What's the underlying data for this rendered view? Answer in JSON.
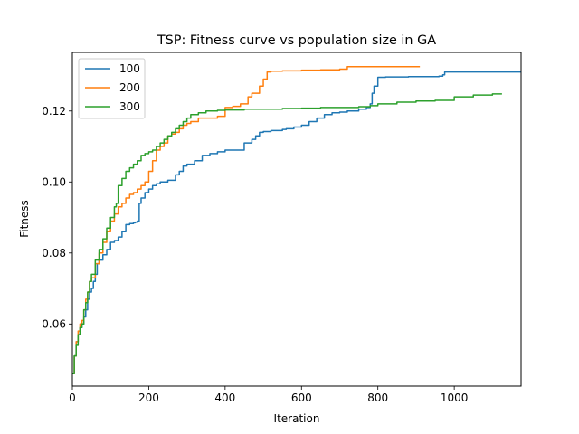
{
  "chart_data": {
    "type": "line",
    "title": "TSP: Fitness curve vs population size in GA",
    "xlabel": "Iteration",
    "ylabel": "Fitness",
    "xlim": [
      0,
      1175
    ],
    "ylim": [
      0.0425,
      0.1365
    ],
    "xticks": [
      0,
      200,
      400,
      600,
      800,
      1000
    ],
    "yticks": [
      0.06,
      0.08,
      0.1,
      0.12
    ],
    "ytick_labels": [
      "0.06",
      "0.08",
      "0.10",
      "0.12"
    ],
    "grid": false,
    "legend_position": "top-left",
    "series": [
      {
        "name": "100",
        "color": "#1f77b4",
        "step": true,
        "x": [
          0,
          5,
          10,
          15,
          20,
          25,
          30,
          35,
          40,
          45,
          50,
          55,
          60,
          65,
          70,
          80,
          90,
          100,
          110,
          120,
          130,
          140,
          150,
          160,
          165,
          170,
          175,
          180,
          190,
          200,
          210,
          220,
          230,
          250,
          270,
          280,
          290,
          300,
          320,
          340,
          360,
          380,
          400,
          430,
          450,
          470,
          480,
          490,
          500,
          520,
          550,
          560,
          580,
          600,
          620,
          640,
          660,
          680,
          700,
          720,
          750,
          770,
          780,
          785,
          790,
          800,
          820,
          850,
          880,
          900,
          940,
          960,
          970,
          975,
          1000,
          1100,
          1175
        ],
        "y": [
          0.046,
          0.051,
          0.055,
          0.057,
          0.059,
          0.06,
          0.062,
          0.064,
          0.067,
          0.069,
          0.07,
          0.072,
          0.074,
          0.077,
          0.078,
          0.0795,
          0.081,
          0.083,
          0.0835,
          0.0845,
          0.086,
          0.088,
          0.0883,
          0.0885,
          0.0887,
          0.089,
          0.094,
          0.0955,
          0.097,
          0.098,
          0.099,
          0.0995,
          0.1,
          0.1005,
          0.102,
          0.103,
          0.1045,
          0.105,
          0.106,
          0.1075,
          0.108,
          0.1085,
          0.109,
          0.109,
          0.111,
          0.112,
          0.113,
          0.114,
          0.1142,
          0.1145,
          0.1148,
          0.115,
          0.1155,
          0.116,
          0.117,
          0.118,
          0.119,
          0.1195,
          0.1197,
          0.12,
          0.1205,
          0.121,
          0.122,
          0.125,
          0.127,
          0.1295,
          0.1296,
          0.1296,
          0.1297,
          0.1297,
          0.1297,
          0.1298,
          0.1302,
          0.131,
          0.131,
          0.131,
          0.131
        ]
      },
      {
        "name": "200",
        "color": "#ff7f0e",
        "step": true,
        "x": [
          0,
          5,
          10,
          15,
          20,
          25,
          30,
          35,
          40,
          45,
          50,
          60,
          70,
          80,
          90,
          100,
          110,
          120,
          130,
          140,
          150,
          160,
          170,
          180,
          190,
          200,
          210,
          220,
          230,
          240,
          250,
          260,
          270,
          280,
          290,
          300,
          310,
          330,
          350,
          380,
          400,
          410,
          420,
          440,
          460,
          470,
          480,
          490,
          500,
          510,
          520,
          550,
          600,
          650,
          700,
          720,
          750,
          800,
          850,
          900,
          910
        ],
        "y": [
          0.046,
          0.051,
          0.055,
          0.058,
          0.06,
          0.061,
          0.064,
          0.067,
          0.069,
          0.072,
          0.073,
          0.077,
          0.08,
          0.083,
          0.086,
          0.089,
          0.091,
          0.093,
          0.094,
          0.0955,
          0.0965,
          0.097,
          0.098,
          0.099,
          0.1,
          0.103,
          0.106,
          0.109,
          0.11,
          0.111,
          0.113,
          0.1135,
          0.114,
          0.115,
          0.116,
          0.1165,
          0.117,
          0.118,
          0.118,
          0.1185,
          0.121,
          0.121,
          0.1213,
          0.122,
          0.124,
          0.125,
          0.125,
          0.127,
          0.129,
          0.131,
          0.1312,
          0.1313,
          0.1315,
          0.1316,
          0.1318,
          0.1325,
          0.1325,
          0.1325,
          0.1325,
          0.1325,
          0.1325
        ]
      },
      {
        "name": "300",
        "color": "#2ca02c",
        "step": true,
        "x": [
          0,
          5,
          10,
          15,
          20,
          25,
          30,
          35,
          40,
          45,
          50,
          60,
          70,
          80,
          90,
          100,
          110,
          115,
          120,
          130,
          140,
          150,
          160,
          170,
          180,
          190,
          200,
          210,
          220,
          230,
          240,
          250,
          260,
          270,
          280,
          290,
          300,
          310,
          330,
          350,
          380,
          400,
          450,
          500,
          550,
          600,
          650,
          700,
          750,
          780,
          800,
          850,
          900,
          950,
          1000,
          1050,
          1100,
          1125
        ],
        "y": [
          0.046,
          0.051,
          0.054,
          0.057,
          0.059,
          0.06,
          0.064,
          0.066,
          0.069,
          0.072,
          0.074,
          0.078,
          0.081,
          0.084,
          0.087,
          0.09,
          0.093,
          0.094,
          0.099,
          0.101,
          0.103,
          0.104,
          0.105,
          0.106,
          0.1075,
          0.108,
          0.1085,
          0.109,
          0.11,
          0.111,
          0.112,
          0.113,
          0.114,
          0.115,
          0.116,
          0.117,
          0.118,
          0.119,
          0.1195,
          0.12,
          0.1202,
          0.1203,
          0.1205,
          0.1205,
          0.1207,
          0.1208,
          0.121,
          0.121,
          0.1212,
          0.1215,
          0.122,
          0.1225,
          0.1228,
          0.123,
          0.124,
          0.1245,
          0.1248,
          0.1248
        ]
      }
    ]
  }
}
